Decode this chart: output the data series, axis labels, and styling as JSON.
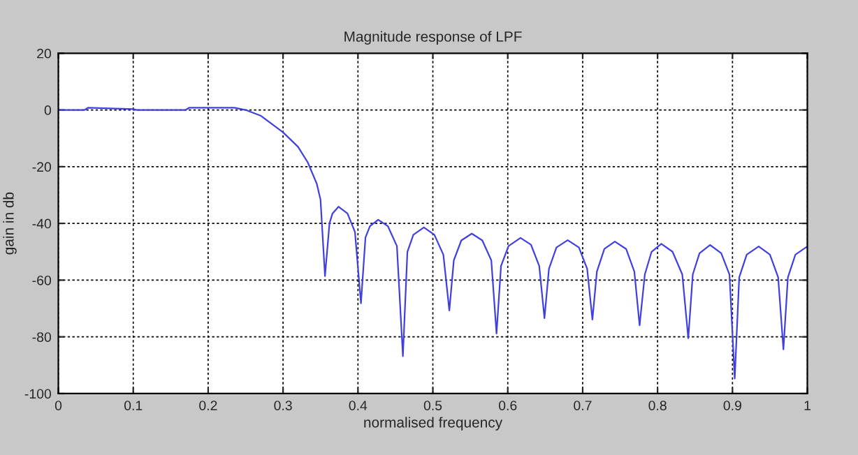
{
  "chart_data": {
    "type": "line",
    "title": "Magnitude response of LPF",
    "xlabel": "normalised frequency",
    "ylabel": "gain in db",
    "xlim": [
      0,
      1
    ],
    "ylim": [
      -100,
      20
    ],
    "xticks": [
      0,
      0.1,
      0.2,
      0.3,
      0.4,
      0.5,
      0.6,
      0.7,
      0.8,
      0.9,
      1
    ],
    "yticks": [
      -100,
      -80,
      -60,
      -40,
      -20,
      0,
      20
    ],
    "grid": true,
    "line_style": "solid",
    "series": [
      {
        "color": "#4040e0",
        "x": [
          0,
          0.035,
          0.04,
          0.1,
          0.105,
          0.17,
          0.175,
          0.235,
          0.25,
          0.27,
          0.3,
          0.32,
          0.333,
          0.345,
          0.35,
          0.356,
          0.362,
          0.366,
          0.374,
          0.386,
          0.396,
          0.404,
          0.41,
          0.416,
          0.427,
          0.44,
          0.452,
          0.46,
          0.466,
          0.474,
          0.488,
          0.502,
          0.514,
          0.522,
          0.528,
          0.538,
          0.552,
          0.566,
          0.578,
          0.585,
          0.591,
          0.601,
          0.617,
          0.631,
          0.642,
          0.649,
          0.655,
          0.665,
          0.68,
          0.695,
          0.706,
          0.713,
          0.719,
          0.729,
          0.743,
          0.758,
          0.769,
          0.776,
          0.783,
          0.792,
          0.805,
          0.82,
          0.833,
          0.841,
          0.847,
          0.856,
          0.87,
          0.885,
          0.896,
          0.903,
          0.909,
          0.919,
          0.935,
          0.95,
          0.961,
          0.968,
          0.974,
          0.984,
          1.0
        ],
        "values": [
          0,
          0,
          0.8,
          0.3,
          0,
          0,
          0.8,
          0.8,
          0,
          -2,
          -7.9,
          -13,
          -18.5,
          -26,
          -31.6,
          -58.6,
          -40,
          -36.5,
          -34.1,
          -36.5,
          -43,
          -68.2,
          -45,
          -41,
          -38.7,
          -41,
          -48,
          -86.8,
          -50,
          -44,
          -41.4,
          -44,
          -51,
          -70.7,
          -53,
          -46,
          -43.6,
          -46,
          -53,
          -78.8,
          -55,
          -48,
          -45.1,
          -47.5,
          -55,
          -73.4,
          -56,
          -48.5,
          -45.9,
          -48.5,
          -56,
          -73.9,
          -57,
          -49,
          -46.4,
          -49,
          -57,
          -75.9,
          -58,
          -50,
          -47.2,
          -50,
          -58,
          -80.5,
          -58,
          -50.5,
          -47.6,
          -50.5,
          -58,
          -94.7,
          -59,
          -51,
          -48.1,
          -51,
          -59,
          -84.4,
          -59,
          -51,
          -48.1
        ]
      }
    ]
  }
}
